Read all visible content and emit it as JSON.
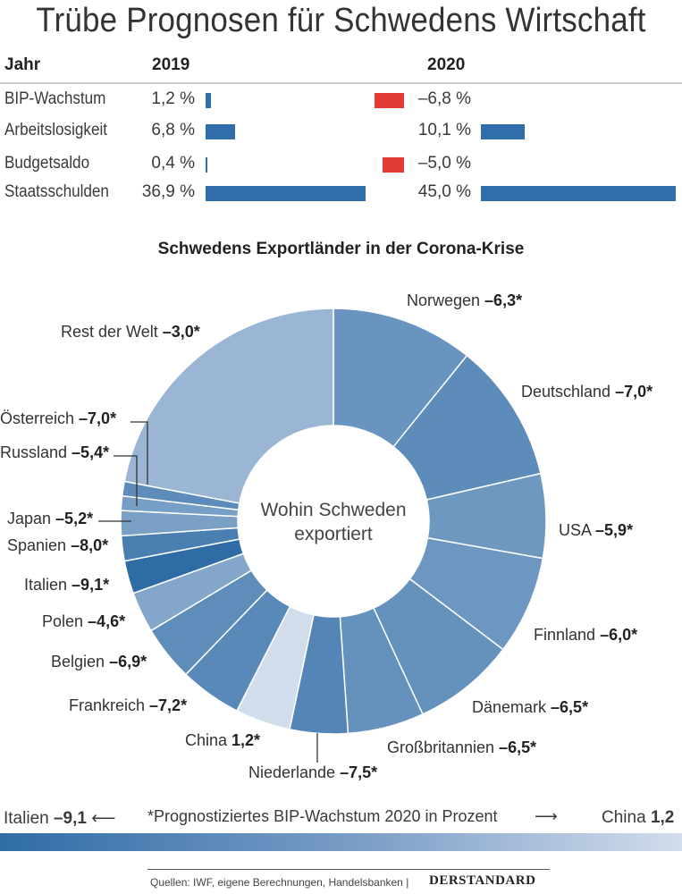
{
  "title": "Trübe Prognosen für Schwedens Wirtschaft",
  "table": {
    "header": {
      "label": "Jahr",
      "y2019": "2019",
      "y2020": "2020"
    },
    "rows": [
      {
        "label": "BIP-Wachstum",
        "v2019": 1.2,
        "t2019": "1,2 %",
        "v2020": -6.8,
        "t2020": "–6,8 %"
      },
      {
        "label": "Arbeitslosigkeit",
        "v2019": 6.8,
        "t2019": "6,8 %",
        "v2020": 10.1,
        "t2020": "10,1 %"
      },
      {
        "label": "Budgetsaldo",
        "v2019": 0.4,
        "t2019": "0,4 %",
        "v2020": -5.0,
        "t2020": "–5,0 %"
      },
      {
        "label": "Staatsschulden",
        "v2019": 36.9,
        "t2019": "36,9 %",
        "v2020": 45.0,
        "t2020": "45,0 %"
      }
    ],
    "colors": {
      "positive": "#2f6ea8",
      "negative": "#e23a34"
    }
  },
  "chart_data": {
    "type": "pie",
    "variant": "donut",
    "title": "Schwedens Exportländer in der Corona-Krise",
    "center_label": "Wohin Schweden exportiert",
    "note": "share values are estimated export shares (%) read from segment angles",
    "segments": [
      {
        "name": "Norwegen",
        "growth": -6.3,
        "text": "–6,3*",
        "share": 10.8
      },
      {
        "name": "Deutschland",
        "growth": -7.0,
        "text": "–7,0*",
        "share": 10.6
      },
      {
        "name": "USA",
        "growth": -5.9,
        "text": "–5,9*",
        "share": 6.4
      },
      {
        "name": "Finnland",
        "growth": -6.0,
        "text": "–6,0*",
        "share": 7.5
      },
      {
        "name": "Dänemark",
        "growth": -6.5,
        "text": "–6,5*",
        "share": 7.8
      },
      {
        "name": "Großbritannien",
        "growth": -6.5,
        "text": "–6,5*",
        "share": 5.8
      },
      {
        "name": "Niederlande",
        "growth": -7.5,
        "text": "–7,5*",
        "share": 4.4
      },
      {
        "name": "China",
        "growth": 1.2,
        "text": "1,2*",
        "share": 4.2
      },
      {
        "name": "Frankreich",
        "growth": -7.2,
        "text": "–7,2*",
        "share": 4.7
      },
      {
        "name": "Belgien",
        "growth": -6.9,
        "text": "–6,9*",
        "share": 4.2
      },
      {
        "name": "Polen",
        "growth": -4.6,
        "text": "–4,6*",
        "share": 3.1
      },
      {
        "name": "Italien",
        "growth": -9.1,
        "text": "–9,1*",
        "share": 2.5
      },
      {
        "name": "Spanien",
        "growth": -8.0,
        "text": "–8,0*",
        "share": 1.9
      },
      {
        "name": "Japan",
        "growth": -5.2,
        "text": "–5,2*",
        "share": 1.9
      },
      {
        "name": "Russland",
        "growth": -5.4,
        "text": "–5,4*",
        "share": 1.1
      },
      {
        "name": "Österreich",
        "growth": -7.0,
        "text": "–7,0*",
        "share": 1.1
      },
      {
        "name": "Rest der Welt",
        "growth": -3.0,
        "text": "–3,0*",
        "share": 22.0
      }
    ],
    "color_scale": {
      "min": -9.1,
      "max": 1.2,
      "min_color": "#2f6ca6",
      "max_color": "#d2ddec"
    }
  },
  "legend": {
    "left_name": "Italien",
    "left_value": "–9,1",
    "caption": "*Prognostiziertes BIP-Wachstum 2020 in Prozent",
    "right_name": "China",
    "right_value": "1,2"
  },
  "footer": {
    "source": "Quellen: IWF, eigene Berechnungen, Handelsbanken |",
    "logo": "DERSTANDARD"
  }
}
